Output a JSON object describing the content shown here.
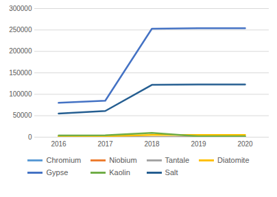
{
  "chart_data": {
    "type": "line",
    "categories": [
      "2016",
      "2017",
      "2018",
      "2019",
      "2020"
    ],
    "series": [
      {
        "name": "Chromium",
        "color": "#5b9bd5",
        "values": [
          500,
          500,
          500,
          500,
          500
        ]
      },
      {
        "name": "Niobium",
        "color": "#ed7d31",
        "values": [
          100,
          100,
          100,
          100,
          100
        ]
      },
      {
        "name": "Tantale",
        "color": "#a5a5a5",
        "values": [
          100,
          100,
          100,
          100,
          100
        ]
      },
      {
        "name": "Diatomite",
        "color": "#ffc000",
        "values": [
          2000,
          2500,
          5000,
          5000,
          5000
        ]
      },
      {
        "name": "Gypse",
        "color": "#4472c4",
        "values": [
          80000,
          85000,
          253000,
          254000,
          254000
        ]
      },
      {
        "name": "Kaolin",
        "color": "#70ad47",
        "values": [
          4000,
          4500,
          10000,
          2000,
          2000
        ]
      },
      {
        "name": "Salt",
        "color": "#255e91",
        "values": [
          55000,
          61000,
          122000,
          123000,
          123000
        ]
      }
    ],
    "ylim": [
      0,
      300000
    ],
    "yticks": [
      0,
      50000,
      100000,
      150000,
      200000,
      250000,
      300000
    ],
    "grid": true,
    "legend": "bottom"
  }
}
